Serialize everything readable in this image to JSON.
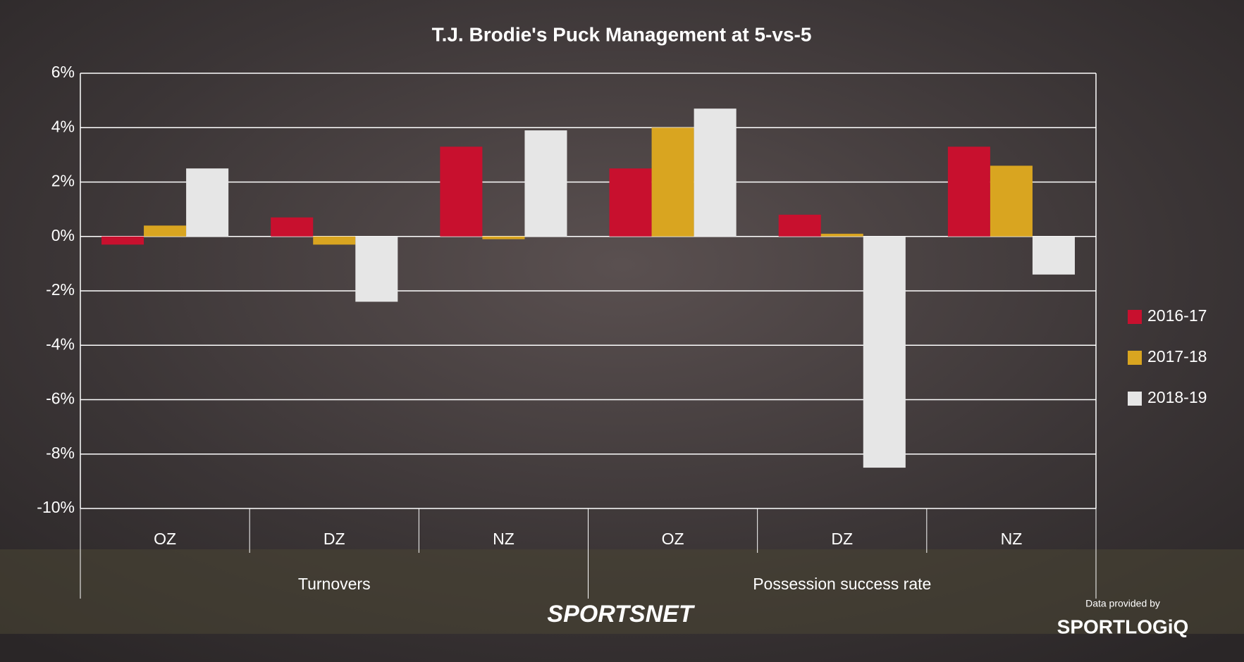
{
  "chart_data": {
    "type": "bar",
    "title": "T.J. Brodie's Puck Management at 5-vs-5",
    "categories": [
      "OZ",
      "DZ",
      "NZ",
      "OZ",
      "DZ",
      "NZ"
    ],
    "groups": [
      "Turnovers",
      "Possession success rate"
    ],
    "series": [
      {
        "name": "2016-17",
        "color": "#c8102e",
        "values": [
          -0.3,
          0.7,
          3.3,
          2.5,
          0.8,
          3.3
        ]
      },
      {
        "name": "2017-18",
        "color": "#d9a520",
        "values": [
          0.4,
          -0.3,
          -0.1,
          4.0,
          0.1,
          2.6
        ]
      },
      {
        "name": "2018-19",
        "color": "#e6e6e6",
        "values": [
          2.5,
          -2.4,
          3.9,
          4.7,
          -8.5,
          -1.4
        ]
      }
    ],
    "ylim": [
      -10,
      6
    ],
    "yticks": [
      {
        "value": -10,
        "label": "-10%"
      },
      {
        "value": -8,
        "label": "-8%"
      },
      {
        "value": -6,
        "label": "-6%"
      },
      {
        "value": -4,
        "label": "-4%"
      },
      {
        "value": -2,
        "label": "-2%"
      },
      {
        "value": 0,
        "label": "0%"
      },
      {
        "value": 2,
        "label": "2%"
      },
      {
        "value": 4,
        "label": "4%"
      },
      {
        "value": 6,
        "label": "6%"
      }
    ],
    "grid": true,
    "legend": "right"
  },
  "branding": {
    "broadcaster": "SPORTSNET",
    "credit": "Data provided by",
    "provider": "SPORTLOGiQ"
  }
}
